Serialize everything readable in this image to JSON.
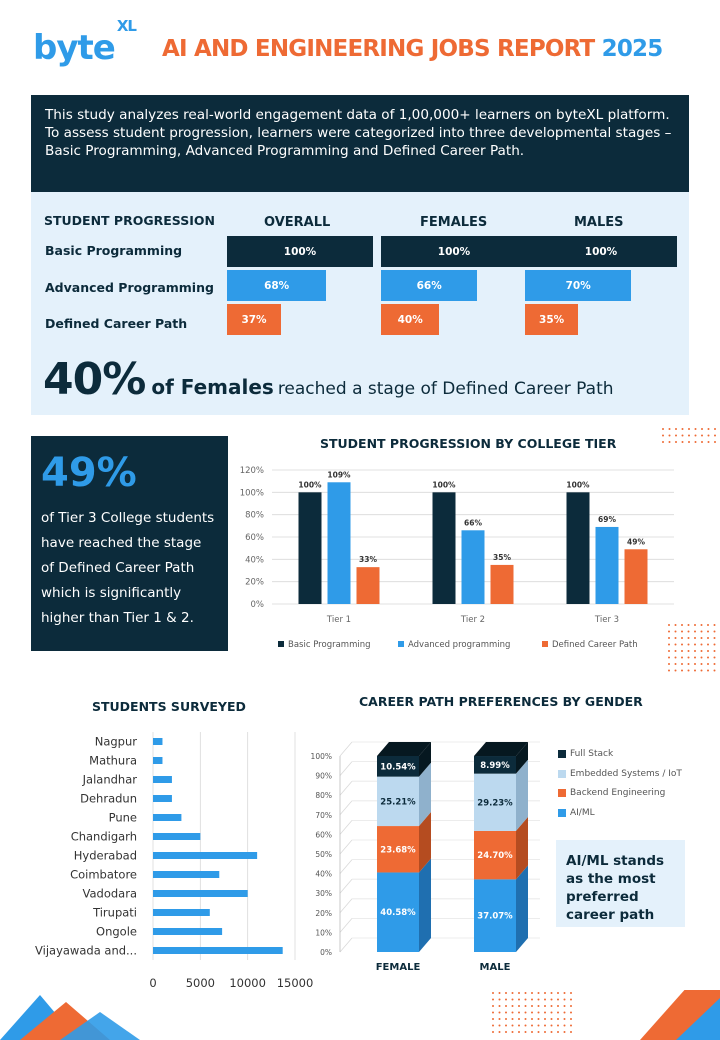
{
  "header": {
    "logo_main": "byte",
    "logo_sup": "XL",
    "title_main": "AI AND ENGINEERING JOBS REPORT",
    "title_year": "2025"
  },
  "intro": {
    "text": "This study analyzes real-world engagement data of 1,00,000+ learners on byteXL platform. To assess student progression, learners were categorized into three developmental stages – Basic Programming, Advanced Programming and Defined Career Path."
  },
  "progression": {
    "heading": "STUDENT PROGRESSION",
    "columns": [
      "OVERALL",
      "FEMALES",
      "MALES"
    ],
    "rows": [
      {
        "label": "Basic Programming",
        "values": [
          100,
          100,
          100
        ],
        "labels": [
          "100%",
          "100%",
          "100%"
        ]
      },
      {
        "label": "Advanced Programming",
        "values": [
          68,
          66,
          70
        ],
        "labels": [
          "68%",
          "66%",
          "70%"
        ]
      },
      {
        "label": "Defined Career Path",
        "values": [
          37,
          40,
          35
        ],
        "labels": [
          "37%",
          "40%",
          "35%"
        ]
      }
    ],
    "headline_pct": "40%",
    "headline_bold": "of Females",
    "headline_rest": "reached a stage of Defined Career Path"
  },
  "tier_callout": {
    "pct": "49%",
    "text": "of Tier 3 College students have reached the stage of Defined Career Path which is significantly higher than Tier 1 & 2."
  },
  "ai_callout": {
    "text": "AI/ML stands as the most preferred career path"
  },
  "colors": {
    "navy": "#0c2b3b",
    "blue": "#2f9be8",
    "orange": "#ee6a34",
    "lightblue": "#bcd9ef",
    "pale": "#e4f1fb"
  },
  "chart_data": [
    {
      "type": "bar",
      "title": "STUDENT PROGRESSION BY COLLEGE TIER",
      "categories": [
        "Tier 1",
        "Tier 2",
        "Tier 3"
      ],
      "series": [
        {
          "name": "Basic Programming",
          "values": [
            100,
            100,
            100
          ],
          "labels": [
            "100%",
            "100%",
            "100%"
          ]
        },
        {
          "name": "Advanced programming",
          "values": [
            109,
            66,
            69
          ],
          "labels": [
            "109%",
            "66%",
            "69%"
          ]
        },
        {
          "name": "Defined Career Path",
          "values": [
            33,
            35,
            49
          ],
          "labels": [
            "33%",
            "35%",
            "49%"
          ]
        }
      ],
      "ylim": [
        0,
        120
      ],
      "yticks": [
        "0%",
        "20%",
        "40%",
        "60%",
        "80%",
        "100%",
        "120%"
      ],
      "grid": true,
      "legend": "bottom"
    },
    {
      "type": "bar",
      "orientation": "horizontal",
      "title": "STUDENTS SURVEYED",
      "categories": [
        "Nagpur",
        "Mathura",
        "Jalandhar",
        "Dehradun",
        "Pune",
        "Chandigarh",
        "Hyderabad",
        "Coimbatore",
        "Vadodara",
        "Tirupati",
        "Ongole",
        "Vijayawada and..."
      ],
      "values": [
        1000,
        1000,
        2000,
        2000,
        3000,
        5000,
        11000,
        7000,
        10000,
        6000,
        7300,
        13700
      ],
      "xlim": [
        0,
        15000
      ],
      "xticks": [
        "0",
        "5000",
        "10000",
        "15000"
      ],
      "grid": true
    },
    {
      "type": "bar",
      "stacked": true,
      "title": "CAREER PATH PREFERENCES BY GENDER",
      "categories": [
        "FEMALE",
        "MALE"
      ],
      "series": [
        {
          "name": "AI/ML",
          "values": [
            40.58,
            37.07
          ],
          "labels": [
            "40.58%",
            "37.07%"
          ]
        },
        {
          "name": "Backend Engineering",
          "values": [
            23.68,
            24.7
          ],
          "labels": [
            "23.68%",
            "24.70%"
          ]
        },
        {
          "name": "Embedded Systems / IoT",
          "values": [
            25.21,
            29.23
          ],
          "labels": [
            "25.21%",
            "29.23%"
          ]
        },
        {
          "name": "Full Stack",
          "values": [
            10.54,
            8.99
          ],
          "labels": [
            "10.54%",
            "8.99%"
          ]
        }
      ],
      "legend_order": [
        "Full Stack",
        "Embedded Systems / IoT",
        "Backend Engineering",
        "AI/ML"
      ],
      "ylim": [
        0,
        100
      ],
      "yticks": [
        "0%",
        "10%",
        "20%",
        "30%",
        "40%",
        "50%",
        "60%",
        "70%",
        "80%",
        "90%",
        "100%"
      ],
      "legend": "right"
    }
  ]
}
